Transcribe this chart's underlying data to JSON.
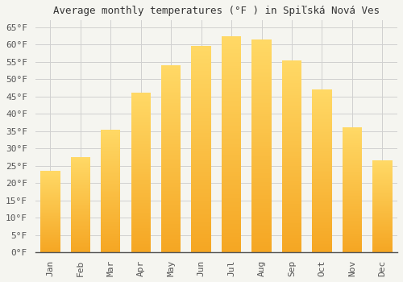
{
  "title": "Average monthly temperatures (°F ) in Spiľská Nová Ves",
  "months": [
    "Jan",
    "Feb",
    "Mar",
    "Apr",
    "May",
    "Jun",
    "Jul",
    "Aug",
    "Sep",
    "Oct",
    "Nov",
    "Dec"
  ],
  "values": [
    23.5,
    27.5,
    35.5,
    46.0,
    54.0,
    59.5,
    62.5,
    61.5,
    55.5,
    47.0,
    36.0,
    26.5
  ],
  "bar_color_bottom": "#F5A623",
  "bar_color_top": "#FFD966",
  "ylim": [
    0,
    67
  ],
  "yticks": [
    0,
    5,
    10,
    15,
    20,
    25,
    30,
    35,
    40,
    45,
    50,
    55,
    60,
    65
  ],
  "ytick_labels": [
    "0°F",
    "5°F",
    "10°F",
    "15°F",
    "20°F",
    "25°F",
    "30°F",
    "35°F",
    "40°F",
    "45°F",
    "50°F",
    "55°F",
    "60°F",
    "65°F"
  ],
  "background_color": "#f5f5f0",
  "plot_bg_color": "#f5f5f0",
  "grid_color": "#d0d0d0",
  "title_fontsize": 9,
  "tick_fontsize": 8,
  "font_family": "monospace",
  "bar_width": 0.65,
  "spine_color": "#555555",
  "tick_color": "#555555"
}
